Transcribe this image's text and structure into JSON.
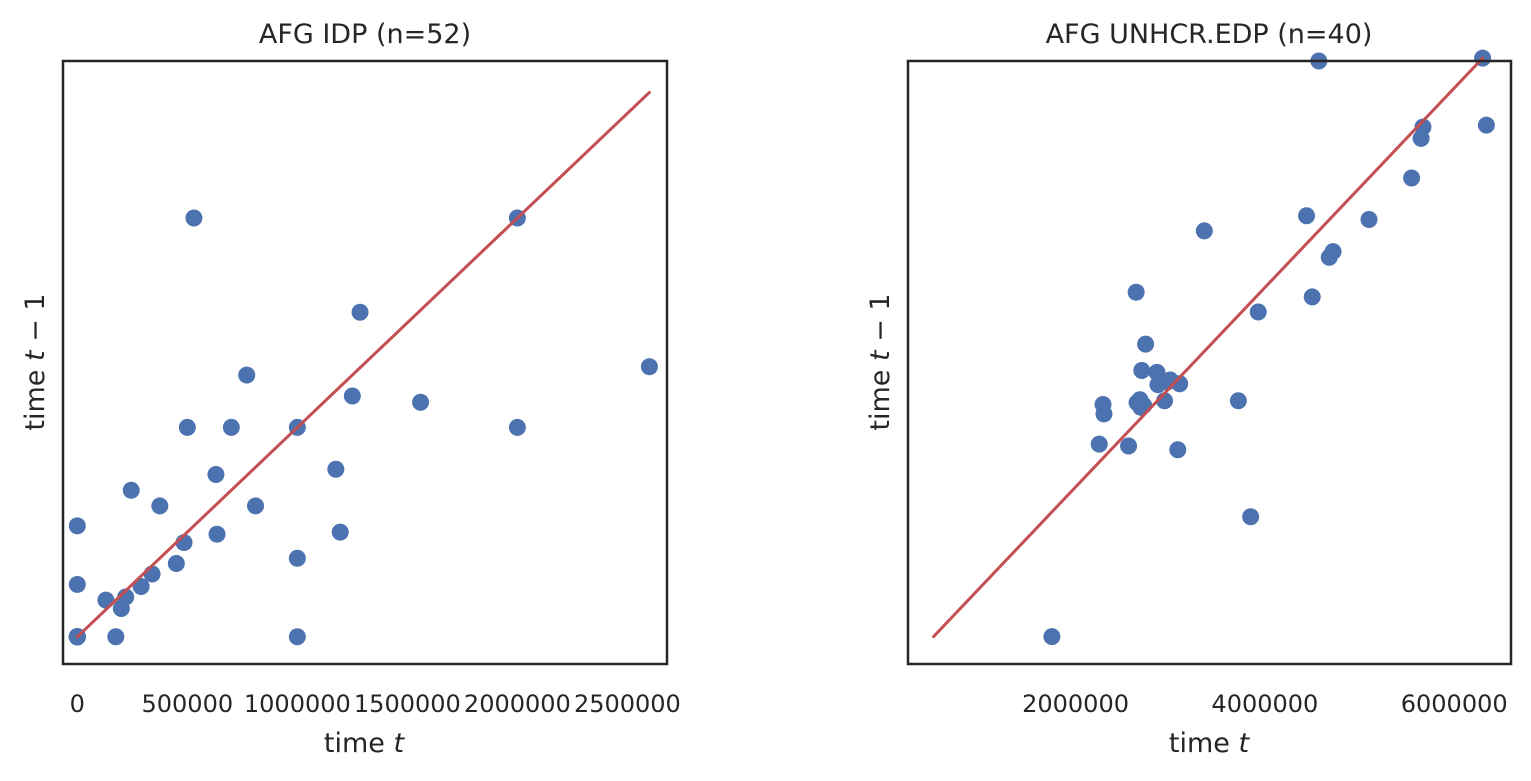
{
  "chart_data": [
    {
      "type": "scatter",
      "title": "AFG IDP (n=52)",
      "xlabel": "time t",
      "ylabel": "time t − 1",
      "xticks": [
        0,
        500000,
        1000000,
        1500000,
        2000000,
        2500000
      ],
      "xtick_labels": [
        "0",
        "500000",
        "1000000",
        "1500000",
        "2000000",
        "2500000"
      ],
      "yticks_shown": false,
      "xlim": [
        -65000,
        2680000
      ],
      "ylim": [
        -130000,
        2750000
      ],
      "grid": false,
      "marker_color": "#4c72b0",
      "line_color": "#c44e52",
      "points": [
        {
          "x": 0,
          "y": 0
        },
        {
          "x": 0,
          "y": 0
        },
        {
          "x": 0,
          "y": 0
        },
        {
          "x": 0,
          "y": 0
        },
        {
          "x": 0,
          "y": 0
        },
        {
          "x": 0,
          "y": 0
        },
        {
          "x": 0,
          "y": 0
        },
        {
          "x": 0,
          "y": 0
        },
        {
          "x": 0,
          "y": 0
        },
        {
          "x": 0,
          "y": 0
        },
        {
          "x": 0,
          "y": 0
        },
        {
          "x": 0,
          "y": 0
        },
        {
          "x": 0,
          "y": 0
        },
        {
          "x": 0,
          "y": 0
        },
        {
          "x": 0,
          "y": 0
        },
        {
          "x": 0,
          "y": 0
        },
        {
          "x": 0,
          "y": 250000
        },
        {
          "x": 0,
          "y": 530000
        },
        {
          "x": 130000,
          "y": 175000
        },
        {
          "x": 175000,
          "y": 0
        },
        {
          "x": 200000,
          "y": 135000
        },
        {
          "x": 220000,
          "y": 190000
        },
        {
          "x": 245000,
          "y": 700000
        },
        {
          "x": 290000,
          "y": 240000
        },
        {
          "x": 340000,
          "y": 300000
        },
        {
          "x": 375000,
          "y": 625000
        },
        {
          "x": 450000,
          "y": 350000
        },
        {
          "x": 485000,
          "y": 450000
        },
        {
          "x": 500000,
          "y": 1000000
        },
        {
          "x": 530000,
          "y": 2000000
        },
        {
          "x": 630000,
          "y": 775000
        },
        {
          "x": 635000,
          "y": 490000
        },
        {
          "x": 700000,
          "y": 1000000
        },
        {
          "x": 770000,
          "y": 1250000
        },
        {
          "x": 810000,
          "y": 625000
        },
        {
          "x": 1000000,
          "y": 0
        },
        {
          "x": 1000000,
          "y": 375000
        },
        {
          "x": 1000000,
          "y": 1000000
        },
        {
          "x": 1175000,
          "y": 800000
        },
        {
          "x": 1195000,
          "y": 500000
        },
        {
          "x": 1250000,
          "y": 1150000
        },
        {
          "x": 1285000,
          "y": 1550000
        },
        {
          "x": 1560000,
          "y": 1120000
        },
        {
          "x": 2000000,
          "y": 1000000
        },
        {
          "x": 2000000,
          "y": 2000000
        },
        {
          "x": 2600000,
          "y": 1290000
        }
      ],
      "fit": {
        "x": [
          0,
          2600000
        ],
        "y": [
          0,
          2600000
        ]
      }
    },
    {
      "type": "scatter",
      "title": "AFG UNHCR.EDP (n=40)",
      "xlabel": "time t",
      "ylabel": "time t − 1",
      "xticks": [
        2000000,
        4000000,
        6000000
      ],
      "xtick_labels": [
        "2000000",
        "4000000",
        "6000000"
      ],
      "yticks_shown": false,
      "xlim": [
        230000,
        6600000
      ],
      "ylim": [
        210000,
        6600000
      ],
      "grid": false,
      "marker_color": "#4c72b0",
      "line_color": "#c44e52",
      "points": [
        {
          "x": 1750000,
          "y": 500000
        },
        {
          "x": 2250000,
          "y": 2540000
        },
        {
          "x": 2290000,
          "y": 2960000
        },
        {
          "x": 2300000,
          "y": 2860000
        },
        {
          "x": 2560000,
          "y": 2520000
        },
        {
          "x": 2640000,
          "y": 4150000
        },
        {
          "x": 2650000,
          "y": 2980000
        },
        {
          "x": 2680000,
          "y": 3010000
        },
        {
          "x": 2690000,
          "y": 2930000
        },
        {
          "x": 2700000,
          "y": 3320000
        },
        {
          "x": 2720000,
          "y": 2950000
        },
        {
          "x": 2740000,
          "y": 3600000
        },
        {
          "x": 2860000,
          "y": 3300000
        },
        {
          "x": 2870000,
          "y": 3170000
        },
        {
          "x": 2940000,
          "y": 3000000
        },
        {
          "x": 2970000,
          "y": 3200000
        },
        {
          "x": 3000000,
          "y": 3220000
        },
        {
          "x": 3080000,
          "y": 2480000
        },
        {
          "x": 3100000,
          "y": 3180000
        },
        {
          "x": 3360000,
          "y": 4800000
        },
        {
          "x": 3720000,
          "y": 3000000
        },
        {
          "x": 3850000,
          "y": 1770000
        },
        {
          "x": 3930000,
          "y": 3940000
        },
        {
          "x": 4440000,
          "y": 4960000
        },
        {
          "x": 4500000,
          "y": 4100000
        },
        {
          "x": 4570000,
          "y": 6600000
        },
        {
          "x": 4680000,
          "y": 4520000
        },
        {
          "x": 4720000,
          "y": 4580000
        },
        {
          "x": 5100000,
          "y": 4920000
        },
        {
          "x": 5550000,
          "y": 5360000
        },
        {
          "x": 5650000,
          "y": 5780000
        },
        {
          "x": 5670000,
          "y": 5900000
        },
        {
          "x": 6300000,
          "y": 6630000
        },
        {
          "x": 6340000,
          "y": 5920000
        }
      ],
      "fit": {
        "x": [
          500000,
          6300000
        ],
        "y": [
          500000,
          6630000
        ]
      }
    }
  ]
}
